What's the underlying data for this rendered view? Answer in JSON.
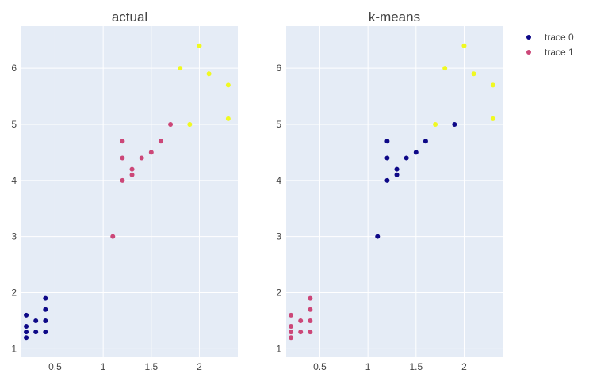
{
  "chart_data": [
    {
      "type": "scatter",
      "title": "actual",
      "xlim": [
        0.15,
        2.4
      ],
      "ylim": [
        0.85,
        6.75
      ],
      "xticks": [
        "0.5",
        "1",
        "1.5",
        "2"
      ],
      "yticks": [
        "1",
        "2",
        "3",
        "4",
        "5",
        "6"
      ],
      "xtick_values": [
        0.5,
        1,
        1.5,
        2
      ],
      "ytick_values": [
        1,
        2,
        3,
        4,
        5,
        6
      ],
      "background": "#e5ecf6",
      "points": [
        {
          "x": 0.2,
          "y": 1.2,
          "c": "#0d0887"
        },
        {
          "x": 0.2,
          "y": 1.3,
          "c": "#0d0887"
        },
        {
          "x": 0.2,
          "y": 1.4,
          "c": "#0d0887"
        },
        {
          "x": 0.2,
          "y": 1.6,
          "c": "#0d0887"
        },
        {
          "x": 0.3,
          "y": 1.3,
          "c": "#0d0887"
        },
        {
          "x": 0.3,
          "y": 1.5,
          "c": "#0d0887"
        },
        {
          "x": 0.4,
          "y": 1.3,
          "c": "#0d0887"
        },
        {
          "x": 0.4,
          "y": 1.5,
          "c": "#0d0887"
        },
        {
          "x": 0.4,
          "y": 1.7,
          "c": "#0d0887"
        },
        {
          "x": 0.4,
          "y": 1.9,
          "c": "#0d0887"
        },
        {
          "x": 1.1,
          "y": 3.0,
          "c": "#cc4778"
        },
        {
          "x": 1.2,
          "y": 4.0,
          "c": "#cc4778"
        },
        {
          "x": 1.2,
          "y": 4.4,
          "c": "#cc4778"
        },
        {
          "x": 1.2,
          "y": 4.7,
          "c": "#cc4778"
        },
        {
          "x": 1.3,
          "y": 4.1,
          "c": "#cc4778"
        },
        {
          "x": 1.3,
          "y": 4.2,
          "c": "#cc4778"
        },
        {
          "x": 1.4,
          "y": 4.4,
          "c": "#cc4778"
        },
        {
          "x": 1.5,
          "y": 4.5,
          "c": "#cc4778"
        },
        {
          "x": 1.6,
          "y": 4.7,
          "c": "#cc4778"
        },
        {
          "x": 1.7,
          "y": 5.0,
          "c": "#cc4778"
        },
        {
          "x": 1.8,
          "y": 6.0,
          "c": "#f0f921"
        },
        {
          "x": 1.9,
          "y": 5.0,
          "c": "#f0f921"
        },
        {
          "x": 2.0,
          "y": 6.4,
          "c": "#f0f921"
        },
        {
          "x": 2.1,
          "y": 5.9,
          "c": "#f0f921"
        },
        {
          "x": 2.3,
          "y": 5.1,
          "c": "#f0f921"
        },
        {
          "x": 2.3,
          "y": 5.7,
          "c": "#f0f921"
        }
      ]
    },
    {
      "type": "scatter",
      "title": "k-means",
      "xlim": [
        0.15,
        2.4
      ],
      "ylim": [
        0.85,
        6.75
      ],
      "xticks": [
        "0.5",
        "1",
        "1.5",
        "2"
      ],
      "yticks": [
        "1",
        "2",
        "3",
        "4",
        "5",
        "6"
      ],
      "xtick_values": [
        0.5,
        1,
        1.5,
        2
      ],
      "ytick_values": [
        1,
        2,
        3,
        4,
        5,
        6
      ],
      "background": "#e5ecf6",
      "points": [
        {
          "x": 0.2,
          "y": 1.2,
          "c": "#cc4778"
        },
        {
          "x": 0.2,
          "y": 1.3,
          "c": "#cc4778"
        },
        {
          "x": 0.2,
          "y": 1.4,
          "c": "#cc4778"
        },
        {
          "x": 0.2,
          "y": 1.6,
          "c": "#cc4778"
        },
        {
          "x": 0.3,
          "y": 1.3,
          "c": "#cc4778"
        },
        {
          "x": 0.3,
          "y": 1.5,
          "c": "#cc4778"
        },
        {
          "x": 0.4,
          "y": 1.3,
          "c": "#cc4778"
        },
        {
          "x": 0.4,
          "y": 1.5,
          "c": "#cc4778"
        },
        {
          "x": 0.4,
          "y": 1.7,
          "c": "#cc4778"
        },
        {
          "x": 0.4,
          "y": 1.9,
          "c": "#cc4778"
        },
        {
          "x": 1.1,
          "y": 3.0,
          "c": "#0d0887"
        },
        {
          "x": 1.2,
          "y": 4.0,
          "c": "#0d0887"
        },
        {
          "x": 1.2,
          "y": 4.4,
          "c": "#0d0887"
        },
        {
          "x": 1.2,
          "y": 4.7,
          "c": "#0d0887"
        },
        {
          "x": 1.3,
          "y": 4.1,
          "c": "#0d0887"
        },
        {
          "x": 1.3,
          "y": 4.2,
          "c": "#0d0887"
        },
        {
          "x": 1.4,
          "y": 4.4,
          "c": "#0d0887"
        },
        {
          "x": 1.5,
          "y": 4.5,
          "c": "#0d0887"
        },
        {
          "x": 1.6,
          "y": 4.7,
          "c": "#0d0887"
        },
        {
          "x": 1.9,
          "y": 5.0,
          "c": "#0d0887"
        },
        {
          "x": 1.7,
          "y": 5.0,
          "c": "#f0f921"
        },
        {
          "x": 1.8,
          "y": 6.0,
          "c": "#f0f921"
        },
        {
          "x": 2.0,
          "y": 6.4,
          "c": "#f0f921"
        },
        {
          "x": 2.1,
          "y": 5.9,
          "c": "#f0f921"
        },
        {
          "x": 2.3,
          "y": 5.1,
          "c": "#f0f921"
        },
        {
          "x": 2.3,
          "y": 5.7,
          "c": "#f0f921"
        }
      ]
    }
  ],
  "legend": {
    "placement": "top-right",
    "items": [
      {
        "label": "trace 0",
        "color": "#0d0887"
      },
      {
        "label": "trace 1",
        "color": "#cc4778"
      }
    ]
  }
}
